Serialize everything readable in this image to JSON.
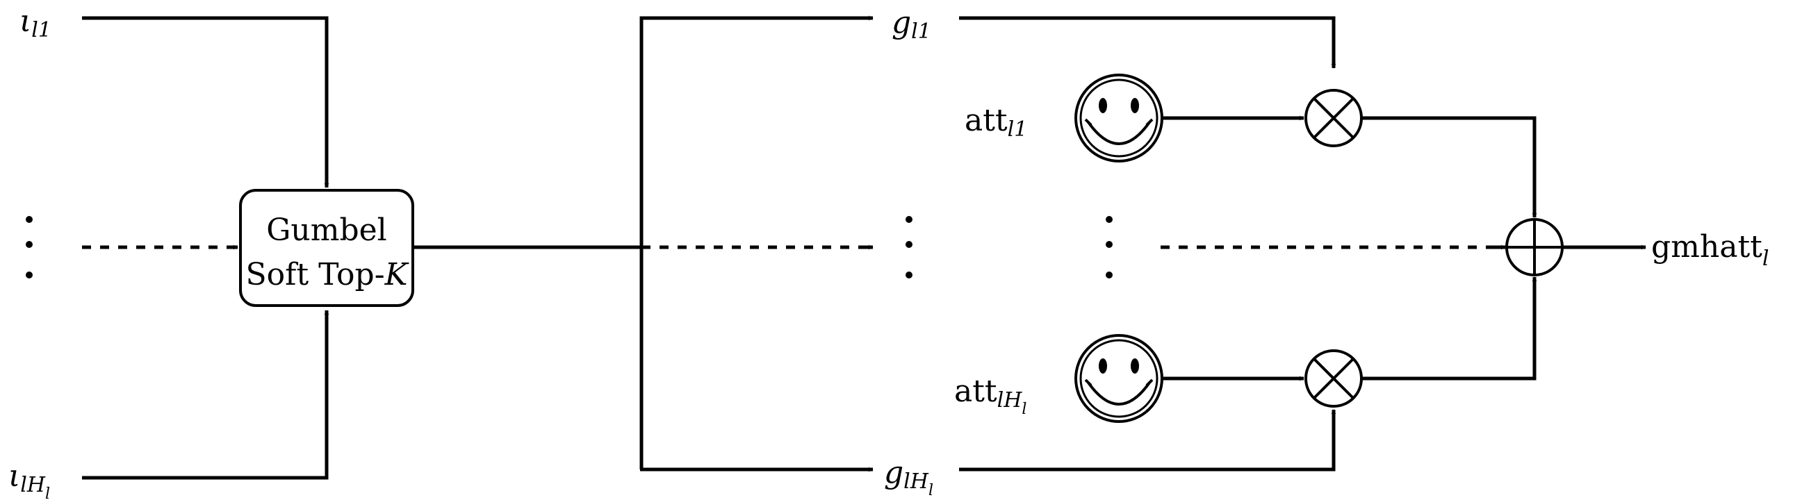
{
  "inputs": {
    "top": {
      "base": "ι",
      "sub": "l1"
    },
    "bottom": {
      "base": "ι",
      "sub": "lH",
      "subsub": "l"
    }
  },
  "gumbel": {
    "line1": "Gumbel",
    "line2_prefix": "Soft Top-",
    "line2_var": "K"
  },
  "gates": {
    "top": {
      "base": "g",
      "sub": "l1"
    },
    "bottom": {
      "base": "g",
      "sub": "lH",
      "subsub": "l"
    }
  },
  "attentions": {
    "top": {
      "base": "att",
      "sub": "l1"
    },
    "bottom": {
      "base": "att",
      "sub": "lH",
      "subsub": "l"
    }
  },
  "output": {
    "base": "gmhatt",
    "sub": "l"
  },
  "icons": {
    "attention_heads": "smiley-face-icon",
    "multiply": "circled-times-icon",
    "sum": "circled-plus-icon",
    "ellipsis": "vertical-ellipsis-icon"
  }
}
